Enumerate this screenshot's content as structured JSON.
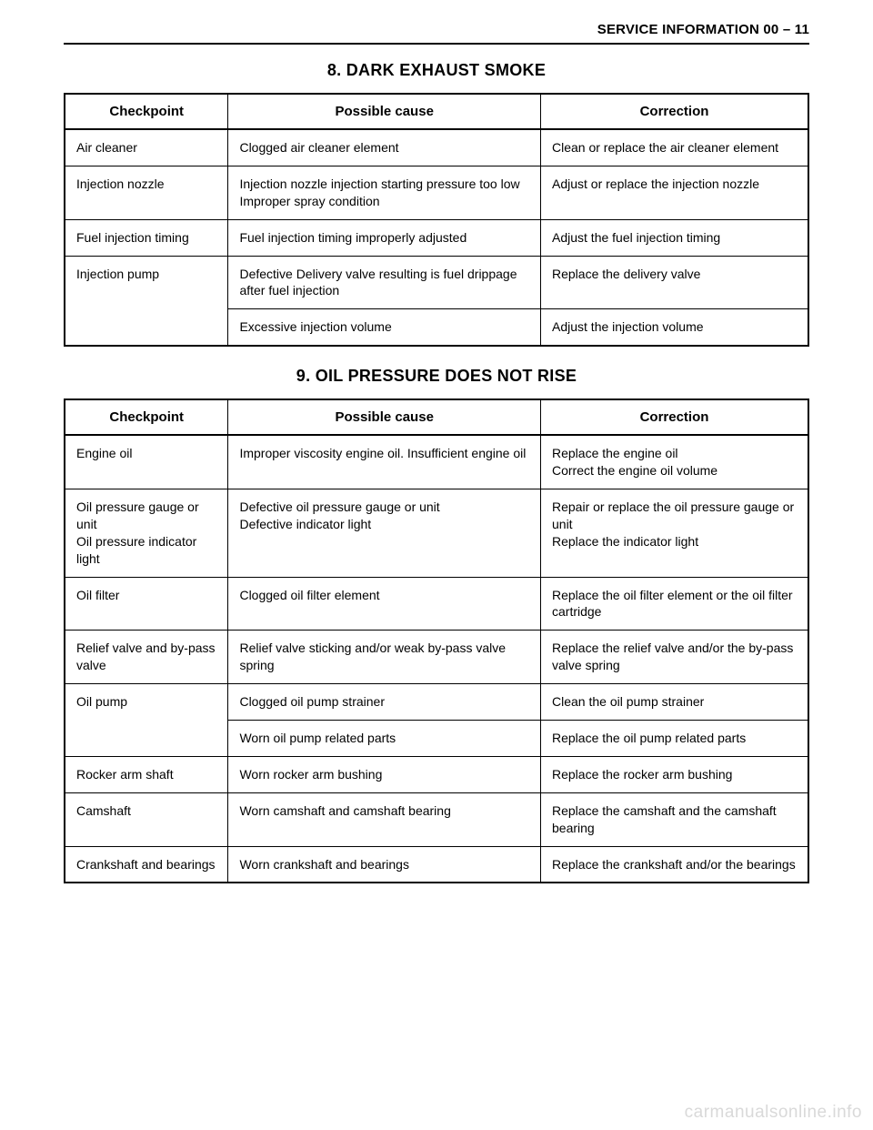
{
  "header": "SERVICE INFORMATION 00 – 11",
  "watermark": "carmanualsonline.info",
  "columns": {
    "checkpoint": "Checkpoint",
    "cause": "Possible cause",
    "correction": "Correction"
  },
  "sections": [
    {
      "title": "8.   DARK EXHAUST SMOKE",
      "rows": [
        {
          "checkpoint": "Air cleaner",
          "cause": "Clogged air cleaner element",
          "correction": "Clean or replace the air cleaner element"
        },
        {
          "checkpoint": "Injection nozzle",
          "cause": "Injection nozzle injection starting pressure too low\nImproper spray condition",
          "correction": "Adjust or replace the injection nozzle"
        },
        {
          "checkpoint": "Fuel injection timing",
          "cause": "Fuel injection timing improperly adjusted",
          "correction": "Adjust the fuel injection timing"
        },
        {
          "checkpoint": "Injection pump",
          "rowspan": 2,
          "cause": "Defective Delivery valve resulting is fuel drippage after fuel injection",
          "correction": "Replace the delivery valve"
        },
        {
          "checkpoint": null,
          "cause": "Excessive injection volume",
          "correction": "Adjust the injection volume"
        }
      ]
    },
    {
      "title": "9.   OIL PRESSURE DOES NOT RISE",
      "rows": [
        {
          "checkpoint": "Engine oil",
          "cause": "Improper viscosity engine oil.  Insufficient engine oil",
          "correction": "Replace the engine oil\nCorrect the engine oil volume"
        },
        {
          "checkpoint": "Oil pressure gauge or unit\nOil pressure indicator light",
          "cause": "Defective oil pressure gauge or unit\nDefective indicator light",
          "correction": "Repair or replace the oil pressure gauge or unit\nReplace the indicator light"
        },
        {
          "checkpoint": "Oil filter",
          "cause": "Clogged oil filter element",
          "correction": "Replace the oil filter element or the oil filter cartridge"
        },
        {
          "checkpoint": "Relief valve and by-pass valve",
          "cause": "Relief valve sticking and/or weak by-pass valve spring",
          "correction": "Replace the relief valve and/or the by-pass valve spring"
        },
        {
          "checkpoint": "Oil pump",
          "rowspan": 2,
          "cause": "Clogged oil pump strainer",
          "correction": "Clean the oil pump strainer"
        },
        {
          "checkpoint": null,
          "cause": "Worn oil pump related parts",
          "correction": "Replace the oil pump related parts"
        },
        {
          "checkpoint": "Rocker arm shaft",
          "cause": "Worn rocker arm bushing",
          "correction": "Replace the rocker arm bushing"
        },
        {
          "checkpoint": "Camshaft",
          "cause": "Worn camshaft and camshaft bearing",
          "correction": "Replace the camshaft and the camshaft bearing"
        },
        {
          "checkpoint": "Crankshaft and bearings",
          "cause": "Worn crankshaft and bearings",
          "correction": "Replace the crankshaft and/or the bearings"
        }
      ]
    }
  ]
}
